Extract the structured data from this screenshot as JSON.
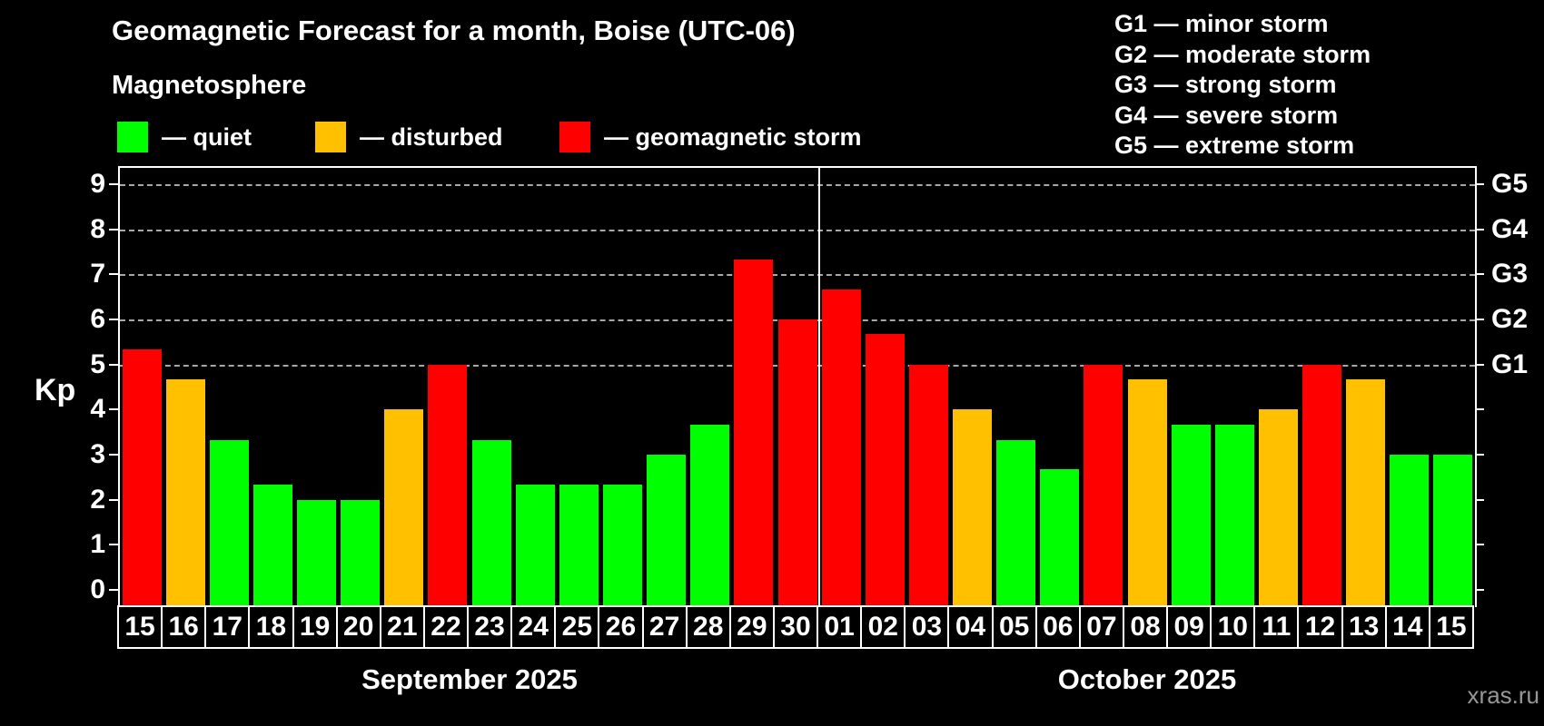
{
  "title": "Geomagnetic Forecast for a month, Boise (UTC-06)",
  "subtitle": "Magnetosphere",
  "legend": [
    {
      "key": "quiet",
      "label": "— quiet",
      "color": "#00ff00"
    },
    {
      "key": "disturbed",
      "label": "— disturbed",
      "color": "#ffc000"
    },
    {
      "key": "storm",
      "label": "— geomagnetic storm",
      "color": "#ff0000"
    }
  ],
  "g_legend": [
    "G1 — minor storm",
    "G2 — moderate storm",
    "G3 — strong storm",
    "G4 — severe storm",
    "G5 — extreme storm"
  ],
  "watermark": "xras.ru",
  "chart_data": {
    "type": "bar",
    "ylabel": "Kp",
    "ylim": [
      0,
      9
    ],
    "left_ticks": [
      0,
      1,
      2,
      3,
      4,
      5,
      6,
      7,
      8,
      9
    ],
    "gridlines": [
      5,
      6,
      7,
      8,
      9
    ],
    "g_scale": [
      {
        "label": "G1",
        "kp": 5
      },
      {
        "label": "G2",
        "kp": 6
      },
      {
        "label": "G3",
        "kp": 7
      },
      {
        "label": "G4",
        "kp": 8
      },
      {
        "label": "G5",
        "kp": 9
      }
    ],
    "status_colors": {
      "quiet": "#00ff00",
      "disturbed": "#ffc000",
      "storm": "#ff0000"
    },
    "months": [
      {
        "label": "September 2025",
        "days": [
          {
            "day": "15",
            "kp": 5.33,
            "status": "storm"
          },
          {
            "day": "16",
            "kp": 4.67,
            "status": "disturbed"
          },
          {
            "day": "17",
            "kp": 3.33,
            "status": "quiet"
          },
          {
            "day": "18",
            "kp": 2.33,
            "status": "quiet"
          },
          {
            "day": "19",
            "kp": 2.0,
            "status": "quiet"
          },
          {
            "day": "20",
            "kp": 2.0,
            "status": "quiet"
          },
          {
            "day": "21",
            "kp": 4.0,
            "status": "disturbed"
          },
          {
            "day": "22",
            "kp": 5.0,
            "status": "storm"
          },
          {
            "day": "23",
            "kp": 3.33,
            "status": "quiet"
          },
          {
            "day": "24",
            "kp": 2.33,
            "status": "quiet"
          },
          {
            "day": "25",
            "kp": 2.33,
            "status": "quiet"
          },
          {
            "day": "26",
            "kp": 2.33,
            "status": "quiet"
          },
          {
            "day": "27",
            "kp": 3.0,
            "status": "quiet"
          },
          {
            "day": "28",
            "kp": 3.67,
            "status": "quiet"
          },
          {
            "day": "29",
            "kp": 7.33,
            "status": "storm"
          },
          {
            "day": "30",
            "kp": 6.0,
            "status": "storm"
          }
        ]
      },
      {
        "label": "October 2025",
        "days": [
          {
            "day": "01",
            "kp": 6.67,
            "status": "storm"
          },
          {
            "day": "02",
            "kp": 5.67,
            "status": "storm"
          },
          {
            "day": "03",
            "kp": 5.0,
            "status": "storm"
          },
          {
            "day": "04",
            "kp": 4.0,
            "status": "disturbed"
          },
          {
            "day": "05",
            "kp": 3.33,
            "status": "quiet"
          },
          {
            "day": "06",
            "kp": 2.67,
            "status": "quiet"
          },
          {
            "day": "07",
            "kp": 5.0,
            "status": "storm"
          },
          {
            "day": "08",
            "kp": 4.67,
            "status": "disturbed"
          },
          {
            "day": "09",
            "kp": 3.67,
            "status": "quiet"
          },
          {
            "day": "10",
            "kp": 3.67,
            "status": "quiet"
          },
          {
            "day": "11",
            "kp": 4.0,
            "status": "disturbed"
          },
          {
            "day": "12",
            "kp": 5.0,
            "status": "storm"
          },
          {
            "day": "13",
            "kp": 4.67,
            "status": "disturbed"
          },
          {
            "day": "14",
            "kp": 3.0,
            "status": "quiet"
          },
          {
            "day": "15",
            "kp": 3.0,
            "status": "quiet"
          }
        ]
      }
    ]
  }
}
